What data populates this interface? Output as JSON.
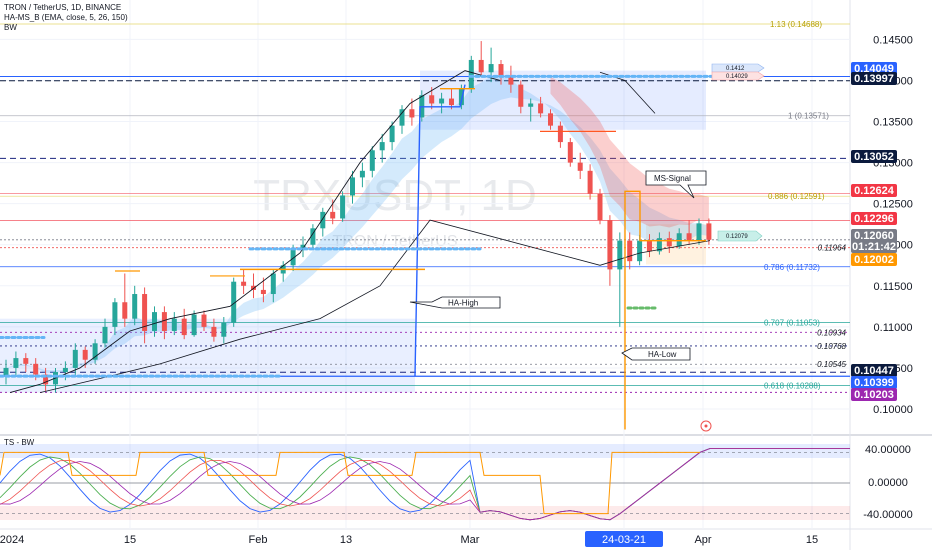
{
  "header": {
    "line1": "TRON / TetherUS, 1D, BINANCE",
    "line2": "HA-MS_B (EMA, close, 5, 26, 150)",
    "line3": "BW"
  },
  "watermark": {
    "symbol": "TRXUSDT, 1D",
    "name": "TRON / TetherUS"
  },
  "sub_panel_label": "TS - BW",
  "colors": {
    "up": "#26a69a",
    "down": "#ef5350",
    "blue": "#2962ff",
    "orange": "#ff9800",
    "fib": "#b8a100",
    "purple": "#9c27b0",
    "cyan_band": "#64b5f6"
  },
  "chart_data": [
    {
      "type": "candlestick",
      "title": "TRON / TetherUS, 1D, BINANCE",
      "y_axis": {
        "ticks": [
          "0.14500",
          "0.14000",
          "0.13500",
          "0.13000",
          "0.12500",
          "0.12000",
          "0.11500",
          "0.11000",
          "0.10500",
          "0.10000"
        ],
        "range": [
          0.0972,
          0.1498
        ]
      },
      "x_axis": {
        "ticks": [
          "2024",
          "15",
          "Feb",
          "13",
          "Mar",
          "24-03-21",
          "Apr",
          "15"
        ],
        "highlighted": "24-03-21"
      },
      "price_badges": [
        {
          "label": "0.14049",
          "color": "#2962ff"
        },
        {
          "label": "0.13997",
          "color": "#0b1a3d"
        },
        {
          "label": "0.13052",
          "color": "#0b1a3d"
        },
        {
          "label": "0.12624",
          "color": "#f23645"
        },
        {
          "label": "0.12296",
          "color": "#f23645"
        },
        {
          "label": "0.12060",
          "color": "#787b86",
          "sub": "01:21:42"
        },
        {
          "label": "0.12002",
          "color": "#ff9800"
        },
        {
          "label": "0.10447",
          "color": "#0b1a3d"
        },
        {
          "label": "0.10399",
          "color": "#2962ff"
        },
        {
          "label": "0.10203",
          "color": "#9c27b0"
        }
      ],
      "plain_levels": [
        "0.11964",
        "0.10934",
        "0.10768",
        "0.10545"
      ],
      "fib_levels": [
        {
          "label": "1.13 (0.14688)",
          "value": 0.14688
        },
        {
          "label": "1 (0.13571)",
          "value": 0.13571
        },
        {
          "label": "0.886 (0.12591)",
          "value": 0.12591
        },
        {
          "label": "0.786 (0.11732)",
          "value": 0.11732
        },
        {
          "label": "0.707 (0.11053)",
          "value": 0.11053
        },
        {
          "label": "0.618 (0.10288)",
          "value": 0.10288
        }
      ],
      "annotations": [
        "HA-High",
        "MS-Signal",
        "HA-Low"
      ],
      "small_tags": [
        "0.1412",
        "0.14029",
        "0.12079"
      ],
      "candles_ohlc": [
        [
          0.104,
          0.106,
          0.103,
          0.105
        ],
        [
          0.105,
          0.107,
          0.104,
          0.1062
        ],
        [
          0.1062,
          0.1068,
          0.1045,
          0.1055
        ],
        [
          0.1055,
          0.1062,
          0.1035,
          0.1042
        ],
        [
          0.1042,
          0.105,
          0.1022,
          0.103
        ],
        [
          0.103,
          0.105,
          0.102,
          0.1045
        ],
        [
          0.1045,
          0.1058,
          0.1035,
          0.105
        ],
        [
          0.105,
          0.108,
          0.104,
          0.1072
        ],
        [
          0.1072,
          0.1076,
          0.105,
          0.106
        ],
        [
          0.106,
          0.1085,
          0.1055,
          0.108
        ],
        [
          0.108,
          0.111,
          0.1075,
          0.11
        ],
        [
          0.11,
          0.1135,
          0.109,
          0.113
        ],
        [
          0.113,
          0.1165,
          0.11,
          0.111
        ],
        [
          0.111,
          0.115,
          0.1102,
          0.114
        ],
        [
          0.114,
          0.1148,
          0.108,
          0.1095
        ],
        [
          0.1095,
          0.1125,
          0.1088,
          0.1118
        ],
        [
          0.1118,
          0.1125,
          0.1085,
          0.1095
        ],
        [
          0.1095,
          0.1118,
          0.109,
          0.111
        ],
        [
          0.111,
          0.1122,
          0.1085,
          0.109
        ],
        [
          0.109,
          0.112,
          0.1088,
          0.1115
        ],
        [
          0.1115,
          0.112,
          0.1095,
          0.11
        ],
        [
          0.11,
          0.111,
          0.1082,
          0.1088
        ],
        [
          0.1088,
          0.1112,
          0.108,
          0.1105
        ],
        [
          0.1105,
          0.116,
          0.11,
          0.1155
        ],
        [
          0.1155,
          0.117,
          0.114,
          0.115
        ],
        [
          0.115,
          0.1165,
          0.1135,
          0.1145
        ],
        [
          0.1145,
          0.116,
          0.113,
          0.114
        ],
        [
          0.114,
          0.117,
          0.113,
          0.1165
        ],
        [
          0.1165,
          0.118,
          0.1155,
          0.1175
        ],
        [
          0.1175,
          0.12,
          0.1168,
          0.1195
        ],
        [
          0.1195,
          0.121,
          0.1185,
          0.12
        ],
        [
          0.12,
          0.1225,
          0.1195,
          0.122
        ],
        [
          0.122,
          0.1245,
          0.121,
          0.124
        ],
        [
          0.124,
          0.1255,
          0.1225,
          0.1232
        ],
        [
          0.1232,
          0.1265,
          0.1228,
          0.126
        ],
        [
          0.126,
          0.129,
          0.125,
          0.1282
        ],
        [
          0.1282,
          0.13,
          0.127,
          0.129
        ],
        [
          0.129,
          0.132,
          0.1282,
          0.1315
        ],
        [
          0.1315,
          0.1335,
          0.13,
          0.1325
        ],
        [
          0.1325,
          0.135,
          0.1315,
          0.1345
        ],
        [
          0.1345,
          0.137,
          0.1335,
          0.1365
        ],
        [
          0.1365,
          0.1378,
          0.1345,
          0.1355
        ],
        [
          0.1355,
          0.1388,
          0.135,
          0.1382
        ],
        [
          0.1382,
          0.1392,
          0.1365,
          0.1372
        ],
        [
          0.1372,
          0.1385,
          0.136,
          0.1378
        ],
        [
          0.1378,
          0.139,
          0.1365,
          0.137
        ],
        [
          0.137,
          0.1395,
          0.1365,
          0.139
        ],
        [
          0.139,
          0.143,
          0.1385,
          0.1425
        ],
        [
          0.1425,
          0.1448,
          0.1405,
          0.141
        ],
        [
          0.141,
          0.144,
          0.1398,
          0.142
        ],
        [
          0.142,
          0.1425,
          0.1395,
          0.1405
        ],
        [
          0.1405,
          0.1418,
          0.1385,
          0.1395
        ],
        [
          0.1395,
          0.14,
          0.136,
          0.1368
        ],
        [
          0.1368,
          0.1378,
          0.135,
          0.1372
        ],
        [
          0.1372,
          0.138,
          0.1355,
          0.136
        ],
        [
          0.136,
          0.1365,
          0.134,
          0.1345
        ],
        [
          0.1345,
          0.135,
          0.1318,
          0.1325
        ],
        [
          0.1325,
          0.133,
          0.1295,
          0.13
        ],
        [
          0.13,
          0.1312,
          0.128,
          0.129
        ],
        [
          0.129,
          0.1298,
          0.1255,
          0.1262
        ],
        [
          0.1262,
          0.1268,
          0.1225,
          0.123
        ],
        [
          0.123,
          0.1236,
          0.115,
          0.117
        ],
        [
          0.117,
          0.1215,
          0.11,
          0.1205
        ],
        [
          0.1205,
          0.1215,
          0.117,
          0.118
        ],
        [
          0.118,
          0.1212,
          0.1175,
          0.1205
        ],
        [
          0.1205,
          0.1213,
          0.1185,
          0.1192
        ],
        [
          0.1192,
          0.1215,
          0.1188,
          0.1208
        ],
        [
          0.1208,
          0.1216,
          0.119,
          0.1198
        ],
        [
          0.1198,
          0.122,
          0.1195,
          0.1214
        ],
        [
          0.1214,
          0.123,
          0.12,
          0.1205
        ],
        [
          0.1205,
          0.1232,
          0.12,
          0.1226
        ],
        [
          0.1226,
          0.1232,
          0.12,
          0.1206
        ]
      ]
    },
    {
      "type": "line",
      "title": "TS - BW",
      "y_axis": {
        "ticks": [
          "40.00000",
          "0.00000",
          "-40.00000"
        ],
        "range": [
          -60,
          60
        ]
      }
    }
  ]
}
